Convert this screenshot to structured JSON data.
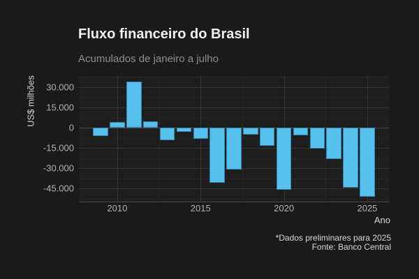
{
  "chart": {
    "title": "Fluxo financeiro do Brasil",
    "subtitle": "Acumulados de janeiro a julho",
    "y_axis_title": "US$ milhões",
    "x_axis_title": "Ano",
    "footnote": "*Dados preliminares para 2025",
    "source": "Fonte: Banco Central",
    "colors": {
      "background": "#1A1A1A",
      "panel_background": "#1E1E1E",
      "bar_fill": "#57C1EE",
      "bar_stroke": "#3585B3",
      "grid_major": "#343434",
      "grid_minor": "#262626",
      "zero_line": "#4D4D4D",
      "title_text": "#F2F2F2",
      "subtitle_text": "#8E8E8E",
      "tick_text": "#B3B3B3",
      "axis_title_text": "#D4D4D4",
      "footer_text": "#D9D9D9"
    }
  },
  "chart_data": {
    "type": "bar",
    "title": "Fluxo financeiro do Brasil",
    "subtitle": "Acumulados de janeiro a julho",
    "xlabel": "Ano",
    "ylabel": "US$ milhões",
    "x": [
      2009,
      2010,
      2011,
      2012,
      2013,
      2014,
      2015,
      2016,
      2017,
      2018,
      2019,
      2020,
      2021,
      2022,
      2023,
      2024,
      2025
    ],
    "values": [
      -6000,
      4000,
      34000,
      4500,
      -9000,
      -3000,
      -8000,
      -40500,
      -31000,
      -5000,
      -13500,
      -46000,
      -5500,
      -15500,
      -23000,
      -44500,
      -51000
    ],
    "xlim": [
      2007.7,
      2026.3
    ],
    "ylim": [
      -55145,
      38245
    ],
    "yticks_major": [
      30000,
      15000,
      0,
      -15000,
      -30000,
      -45000
    ],
    "ytick_labels": [
      "30.000",
      "15.000",
      "0",
      "-15.000",
      "-30.000",
      "-45.000"
    ],
    "yticks_minor": [
      37500,
      22500,
      7500,
      -7500,
      -22500,
      -37500,
      -52500
    ],
    "xticks_major": [
      2010,
      2015,
      2020,
      2025
    ],
    "xtick_labels": [
      "2010",
      "2015",
      "2020",
      "2025"
    ],
    "xticks_minor": [
      2012.5,
      2017.5,
      2022.5
    ],
    "bar_width_years": 0.9,
    "grid": true,
    "legend": false,
    "footnote": "*Dados preliminares para 2025",
    "source": "Fonte: Banco Central"
  }
}
